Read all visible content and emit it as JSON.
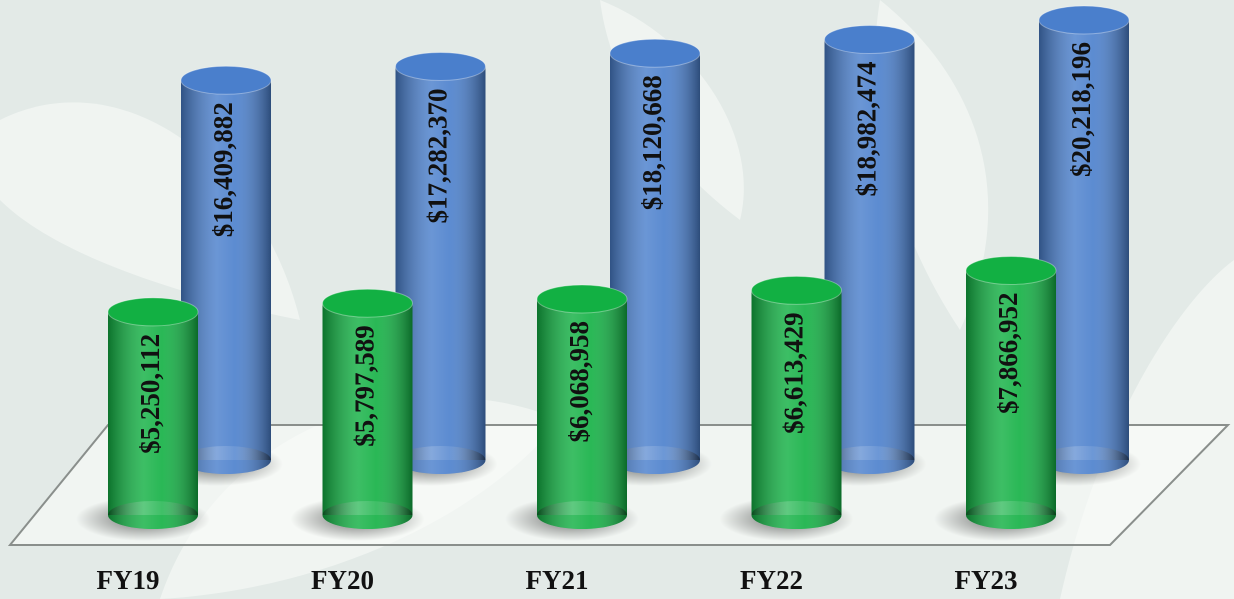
{
  "chart_data": {
    "type": "bar",
    "categories": [
      "FY19",
      "FY20",
      "FY21",
      "FY22",
      "FY23"
    ],
    "series": [
      {
        "color": "#12b043",
        "values": [
          5250112,
          5797589,
          6068958,
          6613429,
          7866952
        ],
        "value_labels": [
          "$5,250,112",
          "$5,797,589",
          "$6,068,958",
          "$6,613,429",
          "$7,866,952"
        ]
      },
      {
        "color": "#4a7fcc",
        "values": [
          16409882,
          17282370,
          18120668,
          18982474,
          20218196
        ],
        "value_labels": [
          "$16,409,882",
          "$17,282,370",
          "$18,120,668",
          "$18,982,474",
          "$20,218,196"
        ]
      }
    ]
  }
}
